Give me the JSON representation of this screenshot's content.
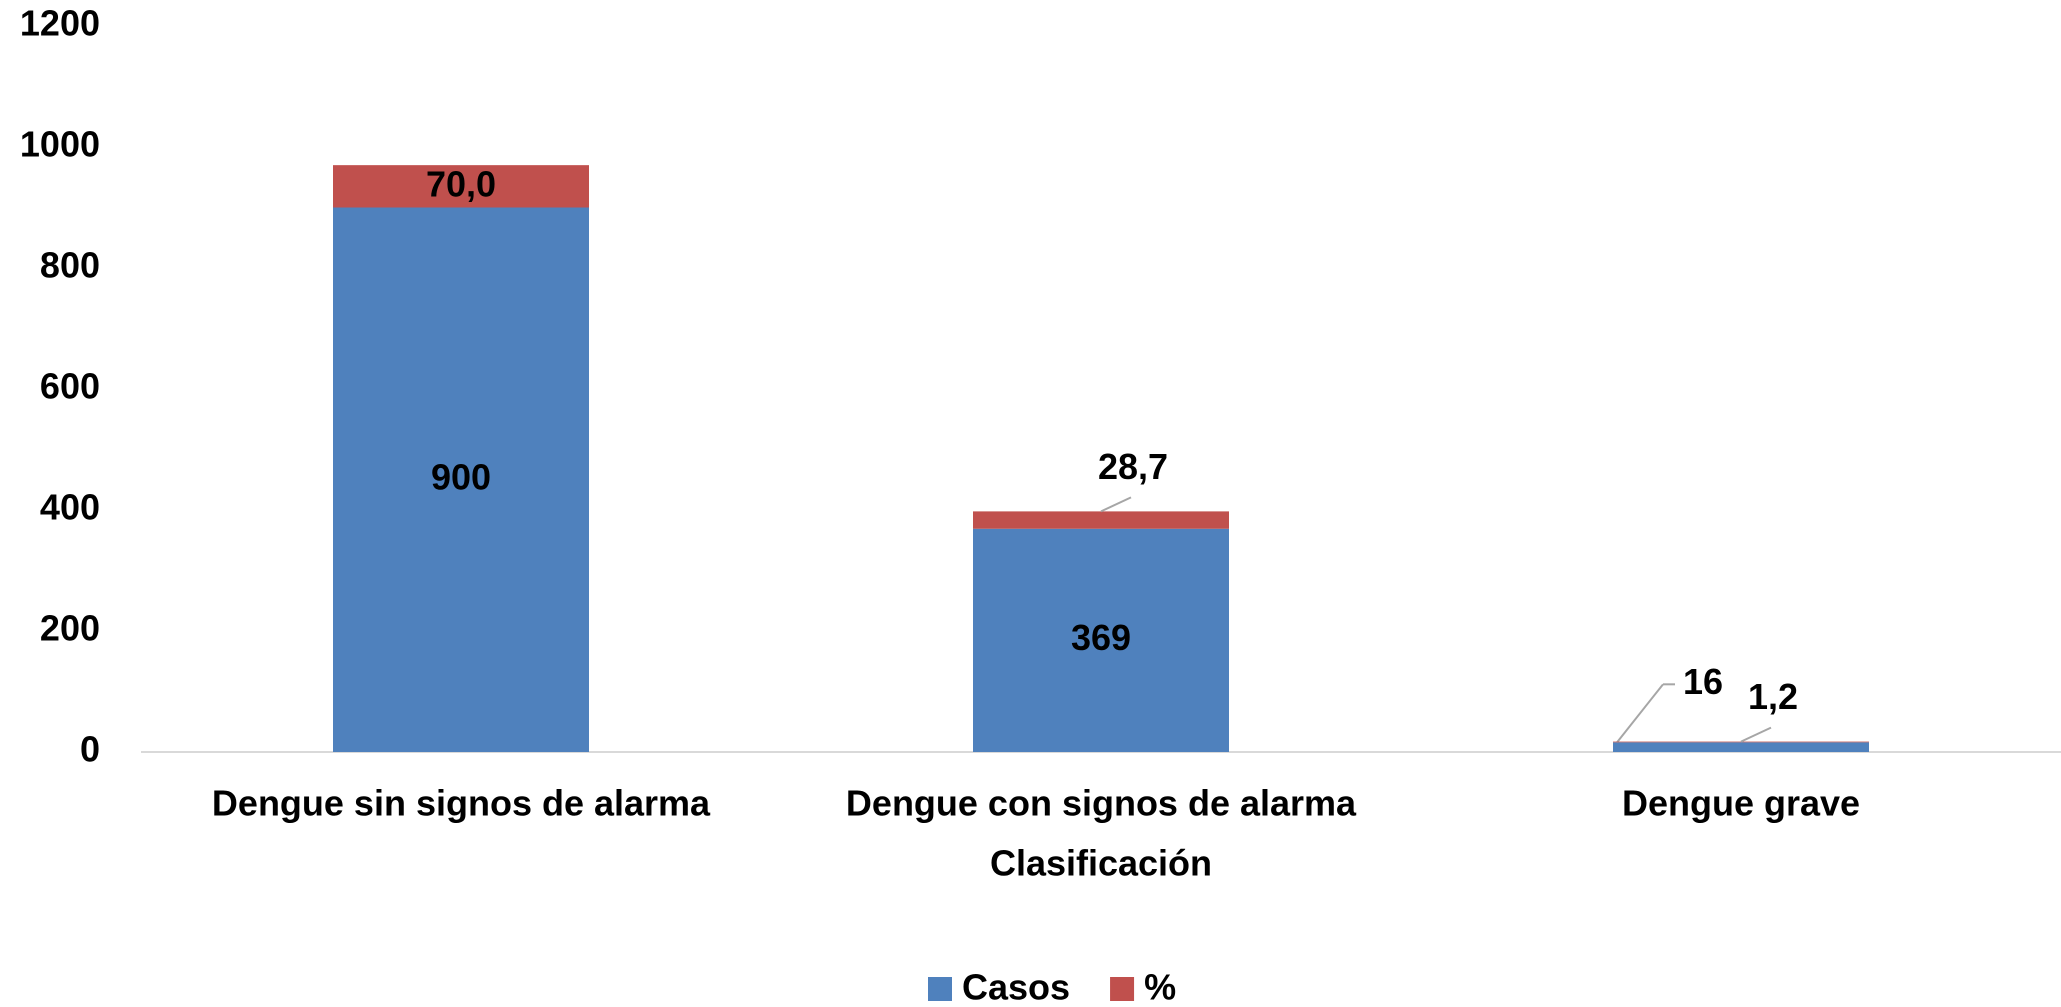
{
  "chart_data": {
    "type": "stacked_bar",
    "x_label": "Clasificación",
    "categories": [
      "Dengue sin signos de alarma",
      "Dengue con signos de alarma",
      "Dengue grave"
    ],
    "series": [
      {
        "name": "Casos",
        "color": "#4f81bd",
        "values": [
          900,
          369,
          16
        ]
      },
      {
        "name": "%",
        "color": "#c0504d",
        "values": [
          70.0,
          28.7,
          1.2
        ],
        "value_labels": [
          "70,0",
          "28,7",
          "1,2"
        ]
      }
    ],
    "ylim": [
      0,
      1200
    ],
    "yticks": [
      0,
      200,
      400,
      600,
      800,
      1000,
      1200
    ],
    "grid": false,
    "legend": "bottom"
  }
}
